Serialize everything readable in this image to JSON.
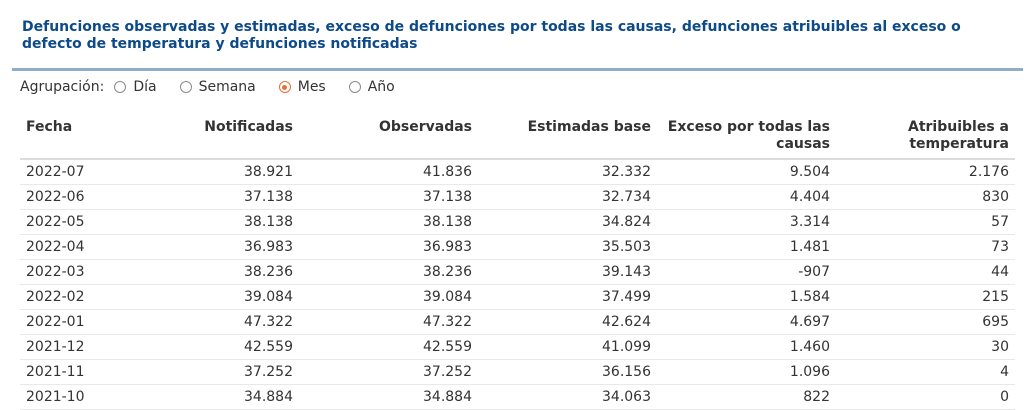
{
  "title": "Defunciones observadas y estimadas, exceso de defunciones por todas las causas, defunciones atribuibles al exceso o defecto de temperatura y defunciones notificadas",
  "grouping": {
    "label": "Agrupación:",
    "options": [
      "Día",
      "Semana",
      "Mes",
      "Año"
    ],
    "selected": "Mes"
  },
  "table": {
    "headers": [
      "Fecha",
      "Notificadas",
      "Observadas",
      "Estimadas base",
      "Exceso por todas las causas",
      "Atribuibles a temperatura"
    ],
    "rows": [
      [
        "2022-07",
        "38.921",
        "41.836",
        "32.332",
        "9.504",
        "2.176"
      ],
      [
        "2022-06",
        "37.138",
        "37.138",
        "32.734",
        "4.404",
        "830"
      ],
      [
        "2022-05",
        "38.138",
        "38.138",
        "34.824",
        "3.314",
        "57"
      ],
      [
        "2022-04",
        "36.983",
        "36.983",
        "35.503",
        "1.481",
        "73"
      ],
      [
        "2022-03",
        "38.236",
        "38.236",
        "39.143",
        "-907",
        "44"
      ],
      [
        "2022-02",
        "39.084",
        "39.084",
        "37.499",
        "1.584",
        "215"
      ],
      [
        "2022-01",
        "47.322",
        "47.322",
        "42.624",
        "4.697",
        "695"
      ],
      [
        "2021-12",
        "42.559",
        "42.559",
        "41.099",
        "1.460",
        "30"
      ],
      [
        "2021-11",
        "37.252",
        "37.252",
        "36.156",
        "1.096",
        "4"
      ],
      [
        "2021-10",
        "34.884",
        "34.884",
        "34.063",
        "822",
        "0"
      ]
    ]
  },
  "colors": {
    "title": "#0d4a8a",
    "accent_radio": "#e8703a",
    "rule": "#8fadc4"
  }
}
